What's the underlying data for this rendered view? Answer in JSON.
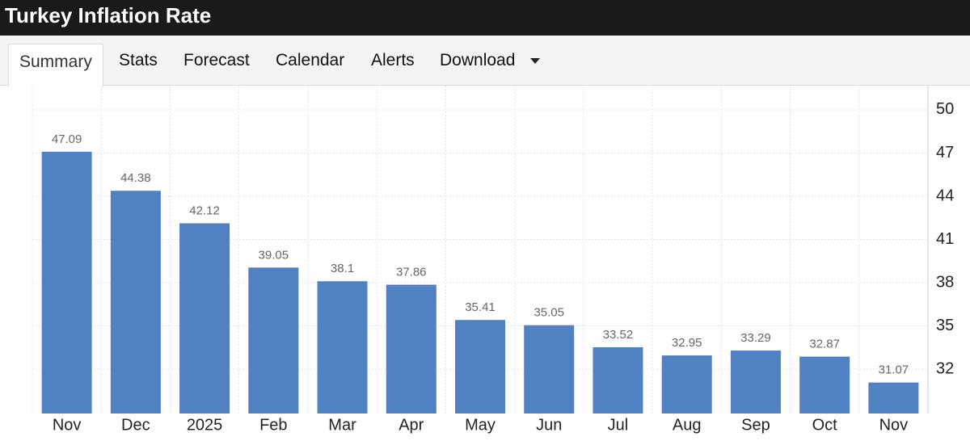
{
  "header": {
    "title": "Turkey Inflation Rate"
  },
  "tabs": [
    "Summary",
    "Stats",
    "Forecast",
    "Calendar",
    "Alerts",
    "Download"
  ],
  "chart_data": {
    "type": "bar",
    "categories": [
      "Nov",
      "Dec",
      "2025",
      "Feb",
      "Mar",
      "Apr",
      "May",
      "Jun",
      "Jul",
      "Aug",
      "Sep",
      "Oct",
      "Nov"
    ],
    "values": [
      47.09,
      44.38,
      42.12,
      39.05,
      38.1,
      37.86,
      35.41,
      35.05,
      33.52,
      32.95,
      33.29,
      32.87,
      31.07
    ],
    "color": "#4f81c3",
    "ylim": [
      28.92,
      51.68
    ],
    "yticks": [
      32,
      35,
      38,
      41,
      44,
      47,
      50
    ],
    "grid": true,
    "axis_side": "right"
  }
}
